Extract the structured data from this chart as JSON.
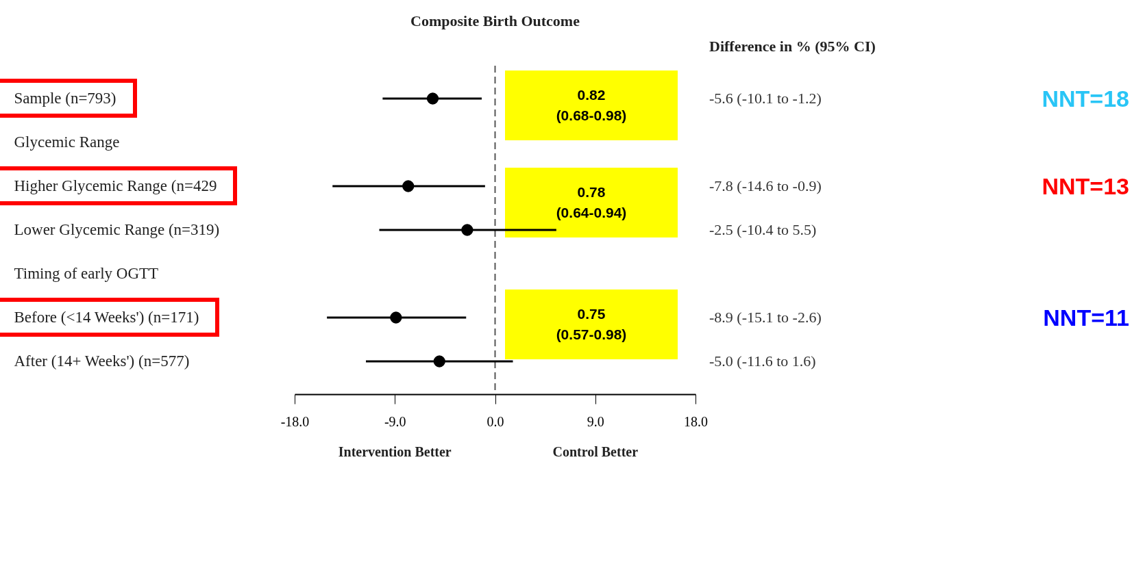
{
  "chart_data": {
    "type": "scatter",
    "title": "Composite Birth Outcome",
    "categories": [
      "Sample (n=793)",
      "Glycemic Range",
      "Higher Glycemic Range (n=429",
      "Lower Glycemic Range (n=319)",
      "Timing of early OGTT",
      "Before (<14 Weeks') (n=171)",
      "After (14+ Weeks') (n=577)"
    ],
    "series": [
      {
        "color": "#000000",
        "values": [
          -5.6,
          null,
          -7.8,
          -2.5,
          null,
          -8.9,
          -5.0
        ],
        "errors": [
          [
            -10.1,
            -1.2
          ],
          null,
          [
            -14.6,
            -0.9
          ],
          [
            -10.4,
            5.5
          ],
          null,
          [
            -15.1,
            -2.6
          ],
          [
            -11.6,
            1.6
          ]
        ],
        "value_labels": [
          "-5.6 (-10.1 to -1.2)",
          null,
          "-7.8 (-14.6 to -0.9)",
          "-2.5 (-10.4 to 5.5)",
          null,
          "-8.9 (-15.1 to -2.6)",
          "-5.0 (-11.6 to 1.6)"
        ]
      }
    ],
    "marker": "circle",
    "orientation": "horizontal",
    "xlim": [
      -18,
      18
    ],
    "xticks": [
      {
        "value": -18,
        "label": "-18.0"
      },
      {
        "value": -9,
        "label": "-9.0"
      },
      {
        "value": 0,
        "label": "0.0"
      },
      {
        "value": 9,
        "label": "9.0"
      },
      {
        "value": 18,
        "label": "18.0"
      }
    ],
    "ref_lines": [
      {
        "axis": "x",
        "value": 0,
        "line_style": "dashed"
      }
    ],
    "annotations": [
      "Difference in % (95% CI)",
      "0.82\n(0.68-0.98)",
      "0.78\n(0.64-0.94)",
      "0.75\n(0.57-0.98)",
      "NNT=18",
      "NNT=13",
      "NNT=11",
      "Intervention Better",
      "Control Better"
    ]
  }
}
